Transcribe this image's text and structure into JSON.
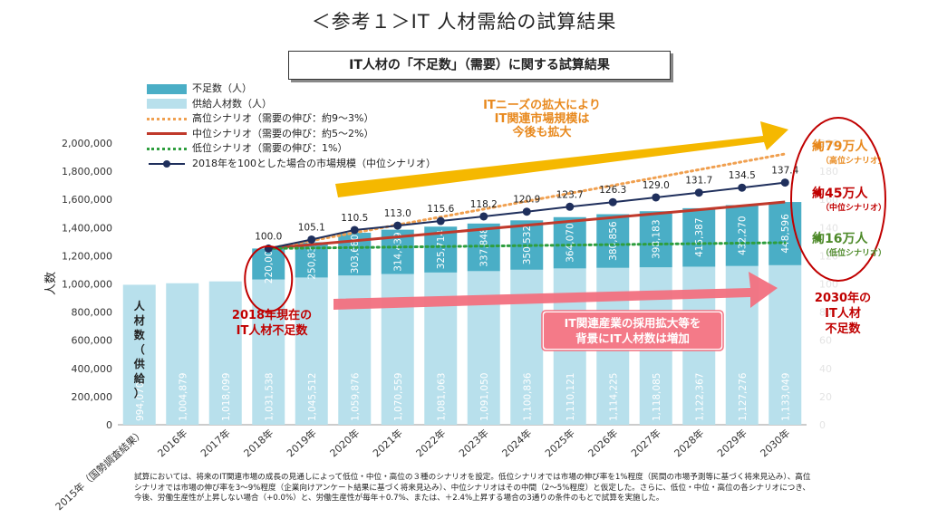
{
  "page_title": "＜参考１＞IT 人材需給の試算結果",
  "chart_title": "IT人材の「不足数」（需要）に関する試算結果",
  "footnote": "試算においては、将来のIT関連市場の成長の見通しによって低位・中位・高位の３種のシナリオを設定。低位シナリオでは市場の伸び率を1%程度（民間の市場予測等に基づく将来見込み）、高位シナリオでは市場の伸び率を3～9%程度（企業向けアンケート結果に基づく将来見込み）、中位シナリオはその中間（2～5%程度）と仮定した。さらに、低位・中位・高位の各シナリオにつき、今後、労働生産性が上昇しない場合（+0.0%）と、労働生産性が毎年＋0.7%、または、＋2.4%上昇する場合の3通りの条件のもとで試算を実施した。",
  "colors": {
    "shortage": "#4aaec6",
    "supply": "#b8e0ec",
    "high": "#f0a050",
    "mid": "#c0392b",
    "low": "#2e9e3e",
    "index": "#1f2f5c",
    "orange_arrow": "#f5b800",
    "pink_arrow": "#f27080"
  },
  "annotations": {
    "market_growth": [
      "ITニーズの拡大により",
      "IT関連市場規模は",
      "今後も拡大"
    ],
    "shortage_2018": [
      "2018年現在の",
      "IT人材不足数"
    ],
    "hiring": [
      "IT関連産業の採用拡大等を",
      "背景にIT人材数は増加"
    ],
    "shortage_2030": [
      "2030年の",
      "IT人材",
      "不足数"
    ],
    "high_big": "約79万人",
    "high_small": "（高位シナリオ）",
    "mid_big": "約45万人",
    "mid_small": "（中位シナリオ）",
    "low_big": "約16万人",
    "low_small": "（低位シナリオ）",
    "vertical_supply": [
      "人",
      "材",
      "数",
      "（",
      "供",
      "給",
      "）"
    ]
  },
  "chart_data": {
    "type": "bar",
    "ylabel": "人数",
    "ylim": [
      0,
      2000000
    ],
    "yticks": [
      0,
      200000,
      400000,
      600000,
      800000,
      1000000,
      1200000,
      1400000,
      1600000,
      1800000,
      2000000
    ],
    "ytick_labels": [
      "0",
      "200,000",
      "400,000",
      "600,000",
      "800,000",
      "1,000,000",
      "1,200,000",
      "1,400,000",
      "1,600,000",
      "1,800,000",
      "2,000,000"
    ],
    "right_axis_ticks": [
      "0",
      "20",
      "40",
      "60",
      "80",
      "100",
      "120",
      "140",
      "160",
      "180",
      "200"
    ],
    "categories": [
      "2015年（国勢調査結果）",
      "2016年",
      "2017年",
      "2018年",
      "2019年",
      "2020年",
      "2021年",
      "2022年",
      "2023年",
      "2024年",
      "2025年",
      "2026年",
      "2027年",
      "2028年",
      "2029年",
      "2030年"
    ],
    "supply": [
      994070,
      1004879,
      1018099,
      1031538,
      1045512,
      1059876,
      1070559,
      1081063,
      1091050,
      1100836,
      1110121,
      1114225,
      1118085,
      1122367,
      1127276,
      1133049
    ],
    "supply_labels": [
      "994,070",
      "1,004,879",
      "1,018,099",
      "1,031,538",
      "1,045,512",
      "1,059,876",
      "1,070,559",
      "1,081,063",
      "1,091,050",
      "1,100,836",
      "1,110,121",
      "1,114,225",
      "1,118,085",
      "1,122,367",
      "1,127,276",
      "1,133,049"
    ],
    "shortage": [
      null,
      null,
      null,
      220000,
      250835,
      303680,
      314439,
      325714,
      337848,
      350532,
      364070,
      380856,
      398183,
      415387,
      432270,
      448596
    ],
    "shortage_labels": [
      "",
      "",
      "",
      "220,000",
      "250,835",
      "303,680",
      "314,439",
      "325,714",
      "337,848",
      "350,532",
      "364,070",
      "380,856",
      "398,183",
      "415,387",
      "432,270",
      "448,596"
    ],
    "market_index": [
      null,
      null,
      null,
      100.0,
      105.1,
      110.5,
      113.0,
      115.6,
      118.2,
      120.9,
      123.7,
      126.3,
      129.0,
      131.7,
      134.5,
      137.4
    ],
    "market_index_labels": [
      "",
      "",
      "",
      "100.0",
      "105.1",
      "110.5",
      "113.0",
      "115.6",
      "118.2",
      "120.9",
      "123.7",
      "126.3",
      "129.0",
      "131.7",
      "134.5",
      "137.4"
    ],
    "scenario_start": 1251538,
    "high_end": 1923049,
    "mid_end": 1581645,
    "low_end": 1293049,
    "legend": [
      {
        "key": "shortage",
        "label": "不足数（人）",
        "style": "box"
      },
      {
        "key": "supply",
        "label": "供給人材数（人）",
        "style": "box"
      },
      {
        "key": "high",
        "label": "高位シナリオ（需要の伸び：約9～3%）",
        "style": "dotted"
      },
      {
        "key": "mid",
        "label": "中位シナリオ（需要の伸び：約5～2%）",
        "style": "solid"
      },
      {
        "key": "low",
        "label": "低位シナリオ（需要の伸び：1%）",
        "style": "dotted"
      },
      {
        "key": "index",
        "label": "2018年を100とした場合の市場規模（中位シナリオ）",
        "style": "marker"
      }
    ]
  }
}
